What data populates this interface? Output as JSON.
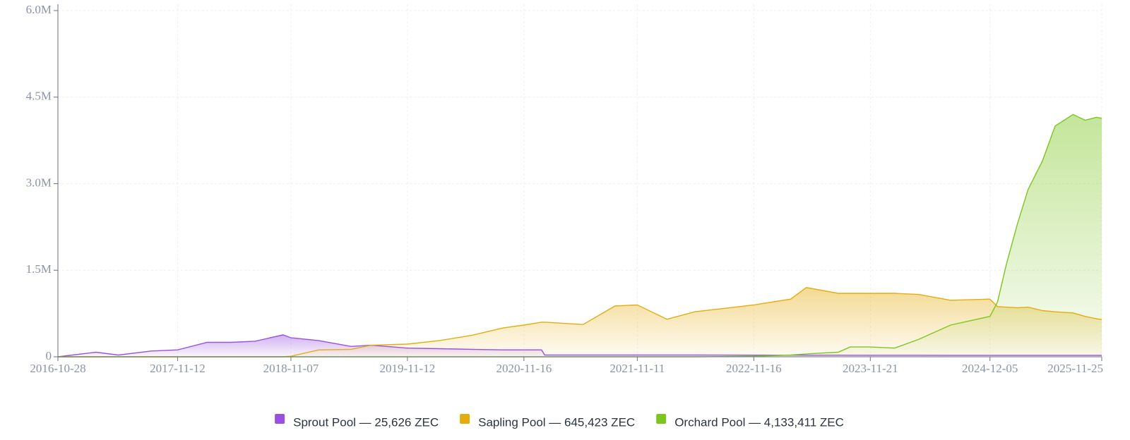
{
  "chart_data": {
    "type": "area",
    "x": [
      "2016-10-28",
      "2017-02-26",
      "2017-05-08",
      "2017-08-21",
      "2017-11-12",
      "2018-02-14",
      "2018-05-01",
      "2018-07-16",
      "2018-10-13",
      "2018-11-07",
      "2019-02-04",
      "2019-05-17",
      "2019-07-20",
      "2019-11-12",
      "2020-02-21",
      "2020-06-02",
      "2020-09-11",
      "2020-11-16",
      "2021-01-11",
      "2021-01-21",
      "2021-05-23",
      "2021-09-01",
      "2021-11-11",
      "2022-02-13",
      "2022-05-12",
      "2022-11-16",
      "2023-03-13",
      "2023-05-02",
      "2023-08-11",
      "2023-09-18",
      "2023-11-21",
      "2024-02-06",
      "2024-04-22",
      "2024-08-02",
      "2024-12-05",
      "2024-12-29",
      "2025-01-26",
      "2025-03-02",
      "2025-04-05",
      "2025-05-21",
      "2025-06-30",
      "2025-08-26",
      "2025-10-03",
      "2025-11-08",
      "2025-11-25"
    ],
    "series": [
      {
        "name": "Sprout Pool — 25,626 ZEC",
        "color": "#9b51e0",
        "values": [
          0,
          80000,
          30000,
          100000,
          120000,
          250000,
          250000,
          270000,
          380000,
          330000,
          280000,
          180000,
          200000,
          150000,
          140000,
          130000,
          120000,
          120000,
          120000,
          30000,
          30000,
          30000,
          30000,
          30000,
          30000,
          28000,
          28000,
          28000,
          28000,
          27000,
          27000,
          27000,
          27000,
          26000,
          26000,
          26000,
          26000,
          26000,
          26000,
          26000,
          26000,
          26000,
          26000,
          26000,
          25626
        ]
      },
      {
        "name": "Sapling Pool — 645,423 ZEC",
        "color": "#e5ac0e",
        "values": [
          0,
          0,
          0,
          0,
          0,
          0,
          0,
          0,
          0,
          10000,
          120000,
          130000,
          200000,
          220000,
          280000,
          370000,
          500000,
          550000,
          600000,
          600000,
          560000,
          880000,
          900000,
          650000,
          780000,
          900000,
          1000000,
          1200000,
          1100000,
          1100000,
          1100000,
          1100000,
          1080000,
          980000,
          1000000,
          870000,
          860000,
          850000,
          860000,
          800000,
          780000,
          760000,
          700000,
          660000,
          645423
        ]
      },
      {
        "name": "Orchard Pool — 4,133,411 ZEC",
        "color": "#7cc61f",
        "values": [
          0,
          0,
          0,
          0,
          0,
          0,
          0,
          0,
          0,
          0,
          0,
          0,
          0,
          0,
          0,
          0,
          0,
          0,
          0,
          0,
          0,
          0,
          0,
          0,
          0,
          10000,
          30000,
          50000,
          80000,
          170000,
          170000,
          150000,
          300000,
          550000,
          700000,
          950000,
          1600000,
          2300000,
          2900000,
          3400000,
          4000000,
          4200000,
          4100000,
          4150000,
          4133411
        ]
      }
    ],
    "xlim": [
      "2016-10-28",
      "2025-11-25"
    ],
    "xticks": [
      "2016-10-28",
      "2017-11-12",
      "2018-11-07",
      "2019-11-12",
      "2020-11-16",
      "2021-11-11",
      "2022-11-16",
      "2023-11-21",
      "2024-12-05",
      "2025-11-25"
    ],
    "ylim": [
      0,
      6000000
    ],
    "yticks": [
      {
        "value": 0,
        "label": "0"
      },
      {
        "value": 1500000,
        "label": "1.5M"
      },
      {
        "value": 3000000,
        "label": "3.0M"
      },
      {
        "value": 4500000,
        "label": "4.5M"
      },
      {
        "value": 6000000,
        "label": "6.0M"
      }
    ],
    "grid": true,
    "legend": "bottom"
  }
}
